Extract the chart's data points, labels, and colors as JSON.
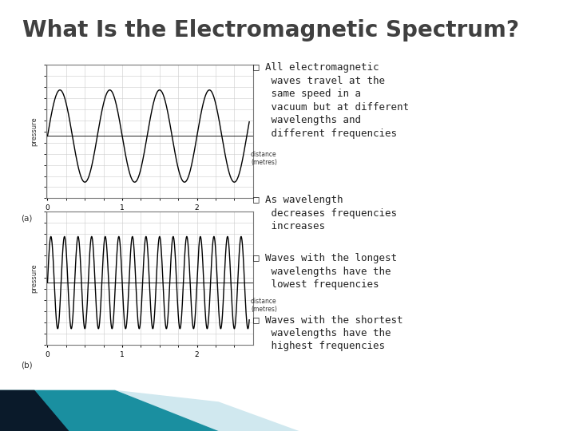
{
  "title": "What Is the Electromagnetic Spectrum?",
  "title_color": "#404040",
  "title_fontsize": 20,
  "bg_color": "#ffffff",
  "bullet_color": "#222222",
  "bullets_line1": [
    "□ All electromagnetic",
    "□ As wavelength",
    "□ Waves with the longest",
    "□ Waves with the shortest"
  ],
  "bullets_rest": [
    "   waves travel at the\n   same speed in a\n   vacuum but at different\n   wavelengths and\n   different frequencies",
    "   decreases frequencies\n   increases",
    "   wavelengths have the\n   lowest frequencies",
    "   wavelengths have the\n   highest frequencies"
  ],
  "wave_a_freq": 1.5,
  "wave_b_freq": 5.5,
  "wave_color": "#000000",
  "grid_color": "#cccccc",
  "axis_label_color": "#333333",
  "wave_a_label": "(a)",
  "wave_b_label": "(b)",
  "xlabel": "distance\n(metres)",
  "ylabel": "pressure",
  "bottom_teal_color": "#1a8fa0",
  "bottom_dark_color": "#0a1a2a",
  "bottom_light_color": "#d0e8ef"
}
